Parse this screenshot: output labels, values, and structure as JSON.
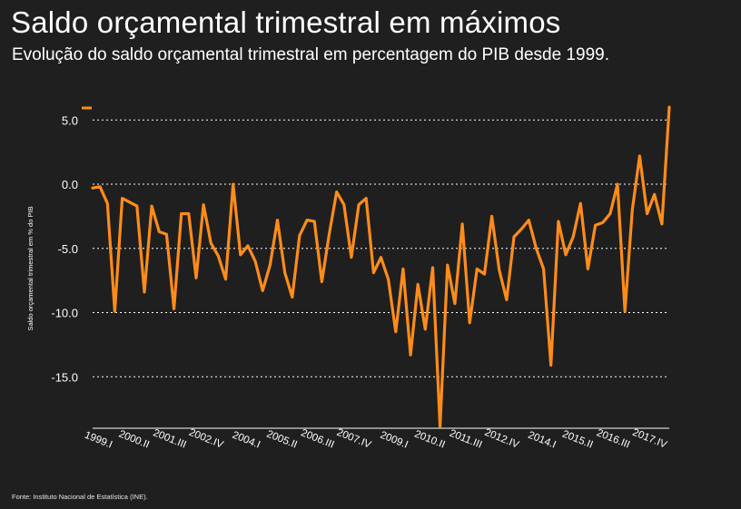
{
  "header": {
    "title": "Saldo orçamental trimestral em máximos",
    "subtitle": "Evolução do saldo orçamental trimestral em percentagem do PIB desde 1999."
  },
  "footer": {
    "source": "Fonte: Instituto Nacional de Estatística (INE)."
  },
  "colors": {
    "background": "#1f1f1f",
    "line": "#ff8c1a",
    "grid": "#ffffff",
    "text": "#ffffff"
  },
  "chart_data": {
    "type": "line",
    "title": "Saldo orçamental trimestral em máximos",
    "subtitle": "Evolução do saldo orçamental trimestral em percentagem do PIB desde 1999.",
    "xlabel": "",
    "ylabel": "Saldo orçamental trimestral em % do PIB",
    "ylim": [
      -19,
      6
    ],
    "yticks": [
      5,
      0,
      -5,
      -10,
      -15
    ],
    "ytick_labels": [
      "5.0",
      "0.0",
      "-5.0",
      "-10.0",
      "-15.0"
    ],
    "grid": "horizontal dotted",
    "legend": "top-left",
    "xtick_labels": [
      {
        "label": "1999.I",
        "index": 0
      },
      {
        "label": "2000.II",
        "index": 5
      },
      {
        "label": "2001.III",
        "index": 10
      },
      {
        "label": "2002.IV",
        "index": 15
      },
      {
        "label": "2004.I",
        "index": 20
      },
      {
        "label": "2005.II",
        "index": 25
      },
      {
        "label": "2006.III",
        "index": 30
      },
      {
        "label": "2007.IV",
        "index": 35
      },
      {
        "label": "2009.I",
        "index": 40
      },
      {
        "label": "2010.II",
        "index": 45
      },
      {
        "label": "2011.III",
        "index": 50
      },
      {
        "label": "2012.IV",
        "index": 55
      },
      {
        "label": "2014.I",
        "index": 60
      },
      {
        "label": "2015.II",
        "index": 65
      },
      {
        "label": "2016.III",
        "index": 70
      },
      {
        "label": "2017.IV",
        "index": 75
      }
    ],
    "series": [
      {
        "values": [
          -0.3,
          -0.2,
          -1.5,
          -9.9,
          -1.1,
          -1.4,
          -1.7,
          -8.4,
          -1.7,
          -3.7,
          -3.9,
          -9.7,
          -2.3,
          -2.3,
          -7.3,
          -1.6,
          -4.6,
          -5.6,
          -7.4,
          0.0,
          -5.5,
          -4.8,
          -6.0,
          -8.3,
          -6.3,
          -2.8,
          -6.9,
          -8.8,
          -4.0,
          -2.8,
          -2.9,
          -7.6,
          -3.9,
          -0.6,
          -1.6,
          -5.7,
          -1.6,
          -1.1,
          -6.9,
          -5.7,
          -7.4,
          -11.5,
          -6.6,
          -13.3,
          -7.8,
          -11.3,
          -6.5,
          -18.9,
          -6.3,
          -9.3,
          -3.1,
          -10.8,
          -6.6,
          -7.0,
          -2.5,
          -6.7,
          -9.0,
          -4.1,
          -3.5,
          -2.8,
          -5.0,
          -6.6,
          -14.1,
          -2.9,
          -5.5,
          -4.1,
          -1.5,
          -6.6,
          -3.2,
          -3.0,
          -2.3,
          0.0,
          -9.9,
          -2.0,
          2.2,
          -2.3,
          -0.8,
          -3.1,
          6.0
        ]
      }
    ]
  }
}
